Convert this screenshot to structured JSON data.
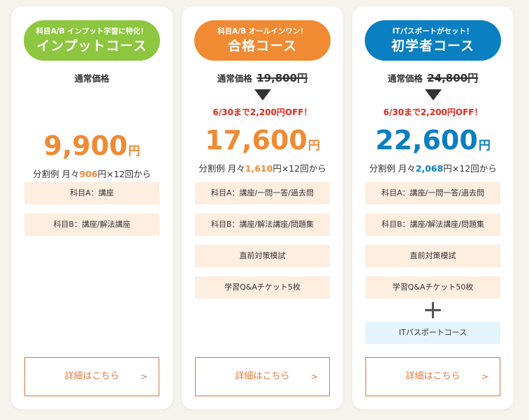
{
  "colors": {
    "green": "#8dc63f",
    "orange": "#f08a33",
    "blue": "#0a7fc2",
    "price_orange": "#f08a33",
    "price_blue": "#0a7fc2",
    "off_red": "#e2261a",
    "feature_bg": "#fdeee0",
    "feature_blue_bg": "#e3f4fc",
    "button_text": "#e07a3c"
  },
  "plans": [
    {
      "subtitle": "科目A/B インプット学習に特化！",
      "title": "インプットコース",
      "regular_label": "通常価格",
      "price": "9,900",
      "yen": "円",
      "installment_prefix": "分割例 月々",
      "installment_amount": "906",
      "installment_suffix": "円×12回から",
      "features": [
        "科目A：講座",
        "科目B：講座/解法講座"
      ],
      "button_label": "詳細はこちら",
      "button_arrow": ">"
    },
    {
      "subtitle": "科目A/B オールインワン！",
      "title": "合格コース",
      "regular_label": "通常価格",
      "regular_price": "19,800円",
      "off_text": "6/30まで2,200円OFF！",
      "price": "17,600",
      "yen": "円",
      "installment_prefix": "分割例 月々",
      "installment_amount": "1,610",
      "installment_suffix": "円×12回から",
      "features": [
        "科目A：講座/一問一答/過去問",
        "科目B：講座/解法講座/問題集",
        "直前対策模試",
        "学習Q&Aチケット5枚"
      ],
      "button_label": "詳細はこちら",
      "button_arrow": ">"
    },
    {
      "subtitle": "ITパスポートがセット！",
      "title": "初学者コース",
      "regular_label": "通常価格",
      "regular_price": "24,800円",
      "off_text": "6/30まで2,200円OFF！",
      "price": "22,600",
      "yen": "円",
      "installment_prefix": "分割例 月々",
      "installment_amount": "2,068",
      "installment_suffix": "円×12回から",
      "features": [
        "科目A：講座/一問一答/過去問",
        "科目B：講座/解法講座/問題集",
        "直前対策模試",
        "学習Q&Aチケット50枚"
      ],
      "plus": "＋",
      "extra_feature": "ITパスポートコース",
      "button_label": "詳細はこちら",
      "button_arrow": ">"
    }
  ]
}
